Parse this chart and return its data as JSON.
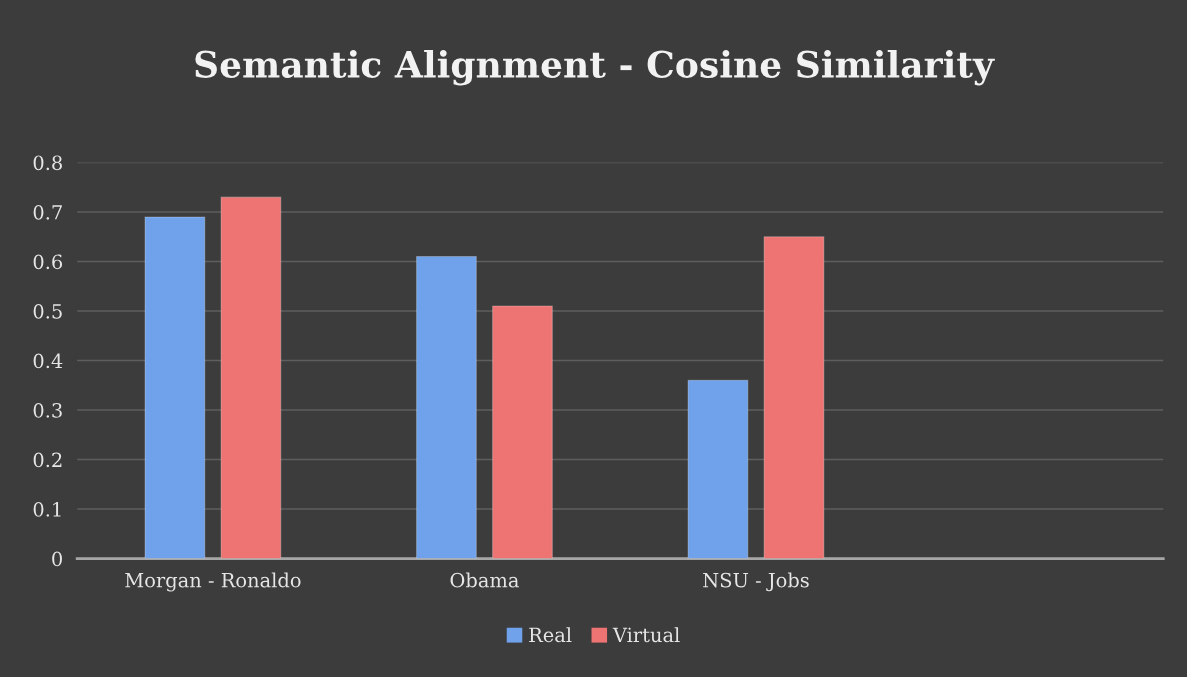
{
  "chart_data": {
    "type": "bar",
    "title": "Semantic Alignment - Cosine Similarity",
    "categories": [
      "Morgan - Ronaldo",
      "Obama",
      "NSU - Jobs",
      null
    ],
    "series": [
      {
        "name": "Real",
        "color": "#6fa2ea",
        "values": [
          0.69,
          0.61,
          0.36,
          null
        ]
      },
      {
        "name": "Virtual",
        "color": "#ee7373",
        "values": [
          0.73,
          0.51,
          0.65,
          null
        ]
      }
    ],
    "ylim": [
      0,
      0.8
    ],
    "yticks": [
      0,
      0.1,
      0.2,
      0.3,
      0.4,
      0.5,
      0.6,
      0.7,
      0.8
    ],
    "grid": "y",
    "legend": "bottom"
  }
}
